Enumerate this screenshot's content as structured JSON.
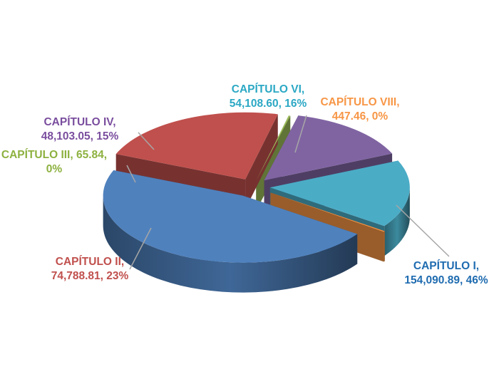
{
  "chart_data": {
    "type": "pie",
    "variant": "3d-exploded",
    "slices": [
      {
        "label": "CAPÍTULO I",
        "value_text": "154,090.89",
        "percent_text": "46%",
        "value": 154090.89,
        "color": "#4f81bd",
        "label_color": "#1f6cb0"
      },
      {
        "label": "CAPÍTULO II",
        "value_text": "74,788.81",
        "percent_text": "23%",
        "value": 74788.81,
        "color": "#c0504d",
        "label_color": "#c0504d"
      },
      {
        "label": "CAPÍTULO III",
        "value_text": "65.84",
        "percent_text": "0%",
        "value": 65.84,
        "color": "#9bbb59",
        "label_color": "#8db13f"
      },
      {
        "label": "CAPÍTULO IV",
        "value_text": "48,103.05",
        "percent_text": "15%",
        "value": 48103.05,
        "color": "#8064a2",
        "label_color": "#7a4e9e"
      },
      {
        "label": "CAPÍTULO VI",
        "value_text": "54,108.60",
        "percent_text": "16%",
        "value": 54108.6,
        "color": "#4bacc6",
        "label_color": "#2ba8c4"
      },
      {
        "label": "CAPÍTULO VIII",
        "value_text": "447.46",
        "percent_text": "0%",
        "value": 447.46,
        "color": "#f79646",
        "label_color": "#f79646"
      }
    ],
    "legend": "none",
    "data_labels": "outside with leader lines"
  }
}
